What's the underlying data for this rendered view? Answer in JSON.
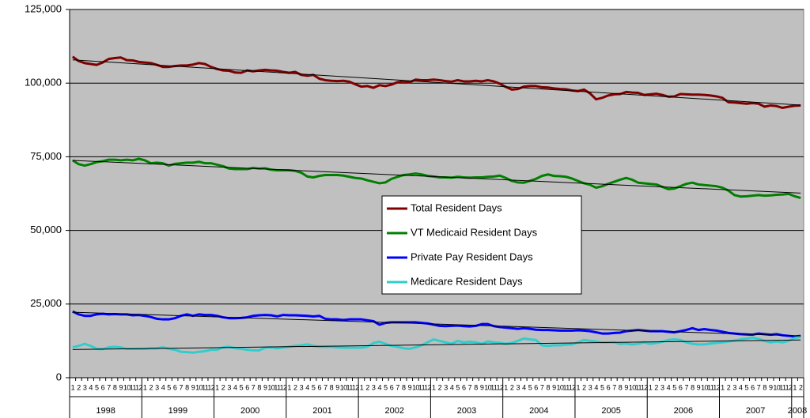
{
  "chart_data": {
    "type": "line",
    "grid": true,
    "trendlines": true,
    "legend": "center",
    "categories": [
      1,
      2,
      3,
      4,
      5,
      6,
      7,
      8,
      9,
      10,
      11,
      12,
      1,
      2,
      3,
      4,
      5,
      6,
      7,
      8,
      9,
      10,
      11,
      12,
      1,
      2,
      3,
      4,
      5,
      6,
      7,
      8,
      9,
      10,
      11,
      12,
      1,
      2,
      3,
      4,
      5,
      6,
      7,
      8,
      9,
      10,
      11,
      12,
      1,
      2,
      3,
      4,
      5,
      6,
      7,
      8,
      9,
      10,
      11,
      12,
      1,
      2,
      3,
      4,
      5,
      6,
      7,
      8,
      9,
      10,
      11,
      12,
      1,
      2,
      3,
      4,
      5,
      6,
      7,
      8,
      9,
      10,
      11,
      12,
      1,
      2,
      3,
      4,
      5,
      6,
      7,
      8,
      9,
      10,
      11,
      12,
      1,
      2,
      3,
      4,
      5,
      6,
      7,
      8,
      9,
      10,
      11,
      12,
      1,
      2,
      3,
      4,
      5,
      6,
      7,
      8,
      9,
      10,
      11,
      12,
      1,
      2
    ],
    "year_labels": [
      "1998",
      "1999",
      "2000",
      "2001",
      "2002",
      "2003",
      "2004",
      "2005",
      "2006",
      "2007",
      "2008"
    ],
    "ylim": [
      0,
      125000
    ],
    "yticks": [
      0,
      {
        "value": 25000,
        "label": "25,000"
      },
      {
        "value": 50000,
        "label": "50,000"
      },
      {
        "value": 75000,
        "label": "75,000"
      },
      {
        "value": 100000,
        "label": "100,000"
      },
      {
        "value": 125000,
        "label": "125,000"
      }
    ],
    "series": [
      {
        "name": "Total Resident Days",
        "color": "#800000",
        "values": [
          109000,
          107500,
          106800,
          106500,
          106200,
          107000,
          108200,
          108500,
          108700,
          107800,
          107700,
          107200,
          107000,
          106800,
          106200,
          105500,
          105500,
          105800,
          106000,
          106000,
          106300,
          106800,
          106500,
          105500,
          104800,
          104300,
          104200,
          103600,
          103500,
          104300,
          104000,
          104300,
          104500,
          104300,
          104200,
          103800,
          103500,
          103800,
          102800,
          102500,
          102800,
          101500,
          101000,
          100800,
          100700,
          100800,
          100500,
          99600,
          98800,
          99000,
          98400,
          99300,
          99000,
          99500,
          100300,
          100600,
          100300,
          101200,
          101000,
          101000,
          101200,
          101000,
          100700,
          100500,
          101000,
          100600,
          100600,
          100800,
          100600,
          101000,
          100600,
          99800,
          98700,
          97800,
          98000,
          98800,
          99000,
          99000,
          98600,
          98500,
          98200,
          98000,
          97900,
          97500,
          97300,
          97800,
          96500,
          94500,
          95000,
          95800,
          96200,
          96300,
          97000,
          96800,
          96700,
          96000,
          96200,
          96400,
          96000,
          95400,
          95500,
          96300,
          96200,
          96100,
          96100,
          96000,
          95800,
          95500,
          95000,
          93500,
          93400,
          93200,
          93000,
          93200,
          93000,
          92000,
          92400,
          92200,
          91600,
          92000,
          92300,
          92400
        ]
      },
      {
        "name": "VT Medicaid Resident Days",
        "color": "#008000",
        "values": [
          73800,
          72500,
          72000,
          72500,
          73200,
          73500,
          74000,
          74000,
          73800,
          74000,
          73800,
          74300,
          73800,
          72800,
          73000,
          72800,
          72000,
          72600,
          72800,
          73000,
          73000,
          73300,
          72800,
          72800,
          72300,
          71800,
          71000,
          70800,
          70800,
          70800,
          71200,
          71000,
          71100,
          70600,
          70400,
          70400,
          70400,
          70200,
          69600,
          68300,
          68000,
          68500,
          68800,
          68800,
          68800,
          68600,
          68200,
          67800,
          67600,
          67000,
          66500,
          66000,
          66300,
          67500,
          68200,
          68800,
          69000,
          69300,
          69000,
          68500,
          68300,
          68000,
          68000,
          67900,
          68200,
          68000,
          67900,
          68000,
          68000,
          68200,
          68300,
          68600,
          67800,
          66800,
          66300,
          66200,
          66800,
          67500,
          68500,
          69000,
          68500,
          68400,
          68200,
          67600,
          66800,
          66000,
          65500,
          64500,
          65000,
          65800,
          66500,
          67200,
          67800,
          67200,
          66200,
          66000,
          65800,
          65600,
          64800,
          64000,
          64200,
          65000,
          65800,
          66200,
          65600,
          65400,
          65200,
          65000,
          64500,
          63500,
          62000,
          61500,
          61600,
          61800,
          62000,
          61800,
          61900,
          62100,
          62200,
          62400,
          61600,
          61000
        ]
      },
      {
        "name": "Private Pay Resident Days",
        "color": "#0000ff",
        "values": [
          22500,
          21500,
          21000,
          21000,
          21500,
          21700,
          21500,
          21600,
          21500,
          21500,
          21200,
          21300,
          21000,
          20600,
          20000,
          19800,
          19800,
          20200,
          21000,
          21500,
          21000,
          21500,
          21300,
          21300,
          21000,
          20500,
          20200,
          20200,
          20300,
          20500,
          21000,
          21200,
          21300,
          21200,
          20800,
          21300,
          21200,
          21200,
          21100,
          21000,
          20800,
          21000,
          20000,
          19800,
          19800,
          19600,
          19800,
          19800,
          19800,
          19500,
          19200,
          18000,
          18600,
          18800,
          18800,
          18800,
          18800,
          18800,
          18600,
          18400,
          18000,
          17600,
          17500,
          17600,
          17700,
          17500,
          17400,
          17600,
          18200,
          18200,
          17500,
          17200,
          17000,
          16800,
          16600,
          16800,
          16600,
          16300,
          16200,
          16200,
          16100,
          16000,
          16000,
          16000,
          16100,
          16000,
          15800,
          15400,
          15000,
          15000,
          15200,
          15300,
          15800,
          16000,
          16200,
          16000,
          15800,
          15800,
          15800,
          15600,
          15400,
          15800,
          16200,
          16800,
          16200,
          16500,
          16200,
          16000,
          15600,
          15200,
          15000,
          14800,
          14700,
          14600,
          15000,
          14800,
          14600,
          14800,
          14400,
          14200,
          14000,
          14200
        ]
      },
      {
        "name": "Medicare Resident Days",
        "color": "#33cccc",
        "values": [
          10300,
          10800,
          11500,
          10800,
          9800,
          9700,
          10300,
          10500,
          10300,
          9800,
          9800,
          9800,
          9800,
          10000,
          10000,
          10300,
          9800,
          9500,
          8800,
          8700,
          8500,
          8800,
          9000,
          9500,
          9500,
          10300,
          10500,
          10000,
          9800,
          9500,
          9300,
          9300,
          10200,
          10300,
          10000,
          10300,
          10500,
          10800,
          11000,
          11300,
          10800,
          10500,
          10500,
          10500,
          10300,
          10200,
          10200,
          10200,
          10200,
          10500,
          11800,
          12200,
          11500,
          10800,
          10500,
          10000,
          9800,
          10300,
          11000,
          12000,
          13000,
          12500,
          12000,
          11500,
          12500,
          12000,
          12200,
          12000,
          11500,
          12300,
          12000,
          11800,
          11500,
          11800,
          12500,
          13300,
          13000,
          12800,
          11000,
          10800,
          11000,
          11000,
          11200,
          11300,
          12000,
          12800,
          12500,
          12300,
          12000,
          12000,
          12000,
          11500,
          11600,
          11300,
          11500,
          12000,
          11500,
          11800,
          12200,
          12800,
          13000,
          12800,
          12000,
          11500,
          11300,
          11300,
          11600,
          11800,
          12000,
          12300,
          12600,
          13000,
          13300,
          13600,
          13200,
          12500,
          12000,
          12300,
          12000,
          12500,
          13500,
          13800
        ]
      }
    ]
  }
}
